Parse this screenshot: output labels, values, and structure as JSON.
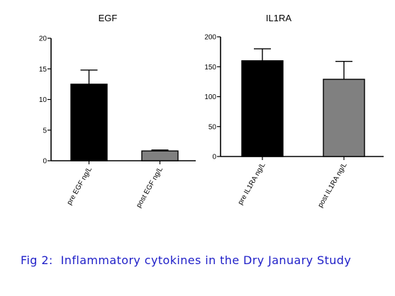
{
  "caption": "Fig 2:  Inflammatory cytokines in the Dry January Study",
  "chart_data": [
    {
      "type": "bar",
      "title": "EGF",
      "categories": [
        "pre EGF ng/L",
        "post EGF ng/L"
      ],
      "values": [
        12.5,
        1.6
      ],
      "errors": [
        2.3,
        0.15
      ],
      "colors": [
        "#000000",
        "#808080"
      ],
      "ylim": [
        0,
        20
      ],
      "yticks": [
        0,
        5,
        10,
        15,
        20
      ],
      "xlabel": "",
      "ylabel": "",
      "grid": false
    },
    {
      "type": "bar",
      "title": "IL1RA",
      "categories": [
        "pre IL1RA ng/L",
        "post IL1RA ng/L"
      ],
      "values": [
        160,
        129
      ],
      "errors": [
        20,
        30
      ],
      "colors": [
        "#000000",
        "#808080"
      ],
      "ylim": [
        0,
        200
      ],
      "yticks": [
        0,
        50,
        100,
        150,
        200
      ],
      "xlabel": "",
      "ylabel": "",
      "grid": false
    }
  ]
}
